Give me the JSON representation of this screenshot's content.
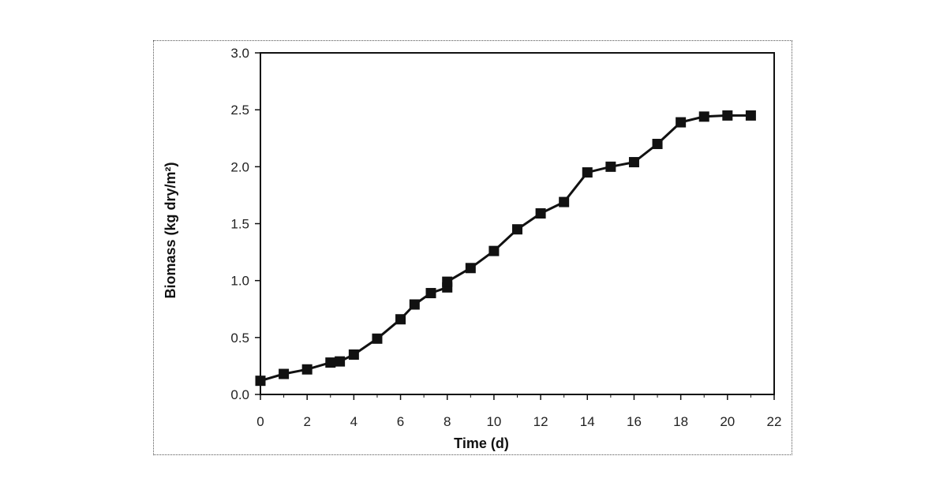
{
  "chart_data": {
    "type": "line",
    "title": "",
    "xlabel": "Time (d)",
    "ylabel": "Biomass (kg dry/m²)",
    "xlim": [
      0,
      22
    ],
    "ylim": [
      0,
      3.0
    ],
    "x_ticks": [
      0,
      2,
      4,
      6,
      8,
      10,
      12,
      14,
      16,
      18,
      20,
      22
    ],
    "y_ticks": [
      "0.0",
      "0.5",
      "1.0",
      "1.5",
      "2.0",
      "2.5",
      "3.0"
    ],
    "grid": false,
    "legend": "none",
    "series": [
      {
        "marker": "square",
        "color": "#111111",
        "points": [
          {
            "x": 0,
            "y": 0.12
          },
          {
            "x": 1,
            "y": 0.18
          },
          {
            "x": 2,
            "y": 0.22
          },
          {
            "x": 3,
            "y": 0.28
          },
          {
            "x": 3.4,
            "y": 0.29
          },
          {
            "x": 4,
            "y": 0.35
          },
          {
            "x": 5,
            "y": 0.49
          },
          {
            "x": 6,
            "y": 0.66
          },
          {
            "x": 6.6,
            "y": 0.79
          },
          {
            "x": 7.3,
            "y": 0.89
          },
          {
            "x": 8,
            "y": 0.94
          },
          {
            "x": 8,
            "y": 0.99
          },
          {
            "x": 9,
            "y": 1.11
          },
          {
            "x": 10,
            "y": 1.26
          },
          {
            "x": 11,
            "y": 1.45
          },
          {
            "x": 12,
            "y": 1.59
          },
          {
            "x": 13,
            "y": 1.69
          },
          {
            "x": 14,
            "y": 1.95
          },
          {
            "x": 15,
            "y": 2.0
          },
          {
            "x": 16,
            "y": 2.04
          },
          {
            "x": 17,
            "y": 2.2
          },
          {
            "x": 18,
            "y": 2.39
          },
          {
            "x": 19,
            "y": 2.44
          },
          {
            "x": 20,
            "y": 2.45
          },
          {
            "x": 21,
            "y": 2.45
          }
        ]
      }
    ]
  }
}
